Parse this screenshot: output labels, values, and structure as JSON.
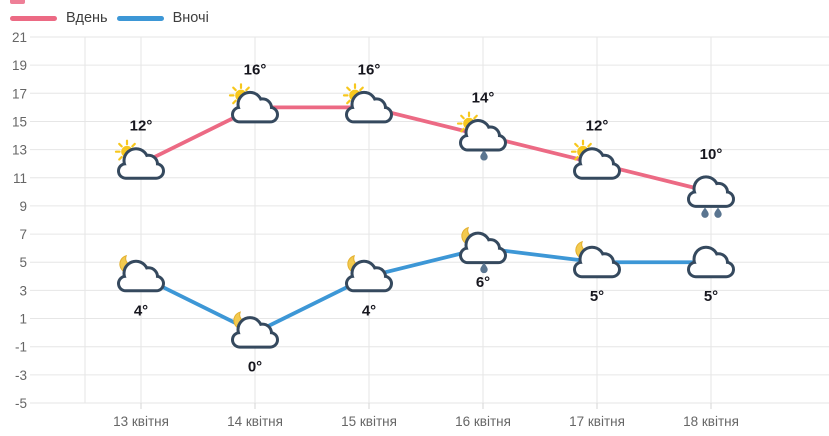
{
  "chart_data": {
    "type": "line",
    "title": "",
    "xlabel": "",
    "ylabel": "",
    "categories": [
      "13 квітня",
      "14 квітня",
      "15 квітня",
      "16 квітня",
      "17 квітня",
      "18 квітня"
    ],
    "series": [
      {
        "name": "Вдень",
        "color": "#ec6a84",
        "values": [
          12,
          16,
          16,
          14,
          12,
          10
        ],
        "labels": [
          "12°",
          "16°",
          "16°",
          "14°",
          "12°",
          "10°"
        ],
        "icons": [
          "sun-cloud",
          "sun-cloud",
          "sun-cloud",
          "sun-cloud-rain",
          "sun-cloud",
          "cloud-rain-2"
        ],
        "label_position": "above"
      },
      {
        "name": "Вночі",
        "color": "#3d97d6",
        "values": [
          4,
          0,
          4,
          6,
          5,
          5
        ],
        "labels": [
          "4°",
          "0°",
          "4°",
          "6°",
          "5°",
          "5°"
        ],
        "icons": [
          "moon-cloud",
          "moon-cloud",
          "moon-cloud",
          "moon-cloud-rain",
          "moon-cloud",
          "cloud"
        ],
        "label_position": "below"
      }
    ],
    "ylim": [
      -5,
      21
    ],
    "ytick_step": 2,
    "y_tick_labels": [
      "21",
      "19",
      "17",
      "15",
      "13",
      "11",
      "9",
      "7",
      "5",
      "3",
      "1",
      "-1",
      "-3",
      "-5"
    ],
    "grid": true,
    "legend_position": "top-left",
    "colors": {
      "grid": "#e6e6e6",
      "axis_line": "#e6e6e6",
      "tick": "#d6d6d6",
      "axis_text": "#666666",
      "label_text": "#16161e",
      "cloud_stroke": "#35495e",
      "cloud_fill": "#ffffff",
      "sun": "#f7c71d",
      "moon": "#f3ca4e",
      "moon_edge": "#e3b02f",
      "raindrop": "#5a7590"
    }
  }
}
